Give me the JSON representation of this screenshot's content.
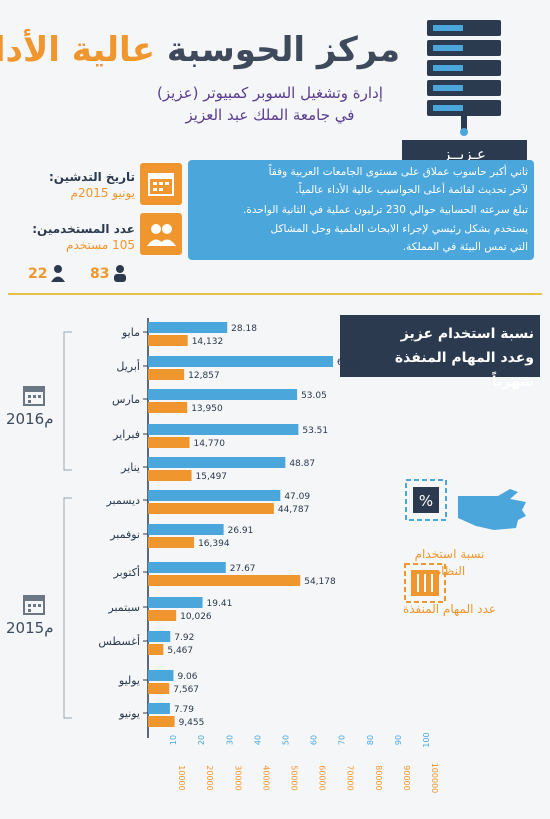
{
  "header": {
    "title_part1": "مركز الحوسبة",
    "title_part2": "عالية الأداء",
    "subtitle_line1": "إدارة وتشغيل السوبر كمبيوتر (عزيز)",
    "subtitle_line2": "في جامعة الملك عبد العزيز",
    "aziz_label": "عـزيــز"
  },
  "info": {
    "lines": [
      "ثاني أكبر حاسوب عملاق على مستوى الجامعات العربية وفقاً",
      "لآخر تحديث لقائمة أعلى الحواسيب عالية الأداء عالمياً.",
      "تبلغ سرعته الحسابية حوالي 230 ترليون عملية في الثانية الواحدة.",
      "يستخدم بشكل رئيسي لإجراء الابحاث العلمية وحل المشاكل",
      "التي تمس البيئة في المملكة."
    ],
    "launch_label": "تاريخ التدشين:",
    "launch_value": "يونيو 2015م",
    "users_label": "عدد المستخدمين:",
    "users_value": "105 مستخدم",
    "female_count": "22",
    "male_count": "83"
  },
  "chart_box": {
    "title_line1": "نسبة استخدام عزيز",
    "title_line2": "وعدد المهام المنفذة شهرياً"
  },
  "legend": {
    "usage_label": "نسبة استخدام النظام",
    "usage_symbol": "%",
    "tasks_label": "عدد المهام المنفذة"
  },
  "colors": {
    "usage": "#4ba6dc",
    "tasks": "#f0962e",
    "dark": "#2b3a4e"
  },
  "chart_data": {
    "type": "bar",
    "orientation": "horizontal",
    "categories": [
      "مايو",
      "أبريل",
      "مارس",
      "فبراير",
      "يناير",
      "ديسمبر",
      "نوفمبر",
      "أكتوبر",
      "سبتمبر",
      "أغسطس",
      "يوليو",
      "يونيو"
    ],
    "groups": [
      {
        "label": "2016م",
        "categories": [
          "مايو",
          "أبريل",
          "مارس",
          "فبراير",
          "يناير"
        ]
      },
      {
        "label": "2015م",
        "categories": [
          "ديسمبر",
          "نوفمبر",
          "أكتوبر",
          "سبتمبر",
          "أغسطس",
          "يوليو",
          "يونيو"
        ]
      }
    ],
    "series": [
      {
        "name": "نسبة استخدام النظام",
        "values": [
          28.18,
          65.83,
          53.05,
          53.51,
          48.87,
          47.09,
          26.91,
          27.67,
          19.41,
          7.92,
          9.06,
          7.79
        ],
        "labels": [
          "28.18",
          "65.83",
          "53.05",
          "53.51",
          "48.87",
          "47.09",
          "26.91",
          "27.67",
          "19.41",
          "7.92",
          "9.06",
          "7.79"
        ]
      },
      {
        "name": "عدد المهام المنفذة",
        "values": [
          14132,
          12857,
          13950,
          14770,
          15497,
          44787,
          16394,
          54178,
          10026,
          5467,
          7567,
          9455
        ],
        "labels": [
          "14,132",
          "12,857",
          "13,950",
          "14,770",
          "15,497",
          "44,787",
          "16,394",
          "54,178",
          "10,026",
          "5,467",
          "7,567",
          "9,455"
        ]
      }
    ],
    "axis_pct": {
      "ticks": [
        "10",
        "20",
        "30",
        "40",
        "50",
        "60",
        "70",
        "80",
        "90",
        "100"
      ],
      "range": [
        0,
        100
      ]
    },
    "axis_count": {
      "ticks": [
        "10000",
        "20000",
        "30000",
        "40000",
        "50000",
        "60000",
        "70000",
        "80000",
        "90000",
        "100000"
      ],
      "range": [
        0,
        100000
      ]
    }
  }
}
